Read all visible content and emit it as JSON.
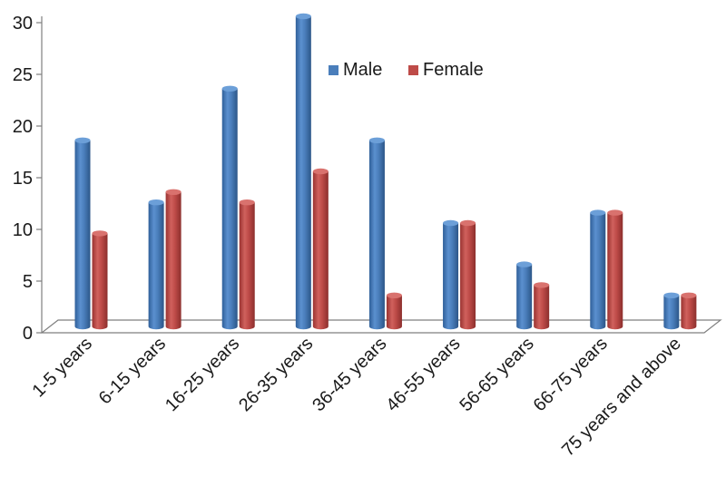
{
  "chart_data": {
    "type": "bar",
    "title": "",
    "xlabel": "",
    "ylabel": "",
    "categories": [
      "1-5 years",
      "6-15 years",
      "16-25 years",
      "26-35 years",
      "36-45 years",
      "46-55 years",
      "56-65 years",
      "66-75 years",
      "75 years and above"
    ],
    "series": [
      {
        "name": "Male",
        "values": [
          18,
          12,
          23,
          30,
          18,
          10,
          6,
          11,
          3
        ],
        "color": "#4a7ebb"
      },
      {
        "name": "Female",
        "values": [
          9,
          13,
          12,
          15,
          3,
          10,
          4,
          11,
          3
        ],
        "color": "#be4b48"
      }
    ],
    "ylim": [
      0,
      30
    ],
    "yticks": [
      "0",
      "5",
      "10",
      "15",
      "20",
      "25",
      "30"
    ],
    "grid": false,
    "legend_position": "top-center",
    "style": "3d-cylinder"
  }
}
